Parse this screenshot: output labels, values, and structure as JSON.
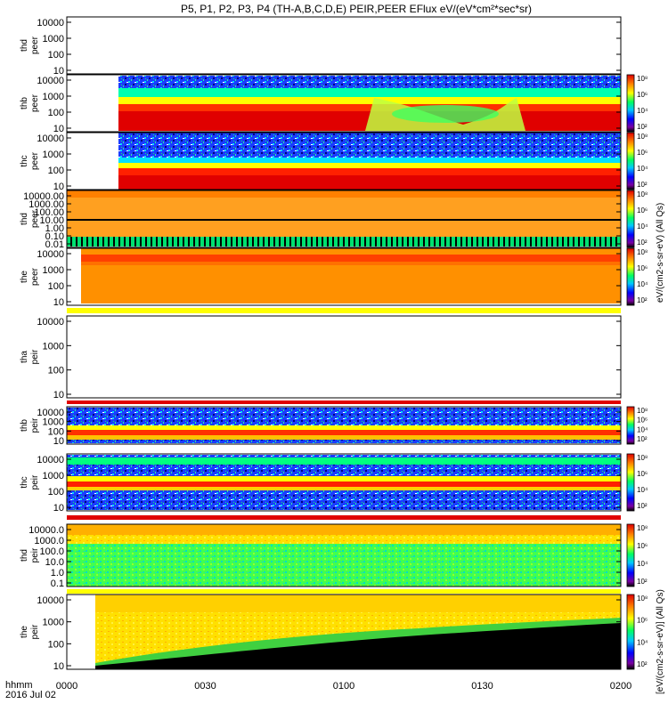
{
  "chart_data": {
    "type": "heatmap",
    "title": "P5, P1, P2, P3, P4 (TH-A,B,C,D,E) PEIR,PEER EFlux eV/(eV*cm²*sec*sr)",
    "xlabel": [
      "hhmm",
      "2016 Jul 02"
    ],
    "x_ticks": [
      "0000",
      "0030",
      "0100",
      "0130",
      "0200"
    ],
    "x_range": [
      "00:00",
      "02:00"
    ],
    "colorbar_label_electrons": "eV/(cm2-s-sr-eV) (All Qs)",
    "colorbar_label_ions": "[eV/(cm2-s-sr-eV)] (All Qs)",
    "colorbar_ticks": [
      "10²",
      "10⁴",
      "10⁶",
      "10⁸"
    ],
    "panels": [
      {
        "probe": "thd",
        "species": "peer",
        "ylabel": [
          "thd",
          "peer"
        ],
        "yticks": [
          "10000",
          "1000",
          "100",
          "10"
        ],
        "empty": true
      },
      {
        "probe": "thb",
        "species": "peer",
        "ylabel": [
          "thb",
          "peer"
        ],
        "yticks": [
          "10000",
          "1000",
          "100",
          "10"
        ],
        "empty": false
      },
      {
        "probe": "thc",
        "species": "peer",
        "ylabel": [
          "thc",
          "peer"
        ],
        "yticks": [
          "10000",
          "1000",
          "100",
          "10"
        ],
        "empty": false
      },
      {
        "probe": "thd",
        "species": "peer",
        "ylabel": [
          "thd",
          "peer"
        ],
        "yticks": [
          "10000.00",
          "1000.00",
          "100.00",
          "10.00",
          "1.00",
          "0.10",
          "0.01"
        ],
        "empty": false
      },
      {
        "probe": "the",
        "species": "peer",
        "ylabel": [
          "the",
          "peer"
        ],
        "yticks": [
          "10000",
          "1000",
          "100",
          "10"
        ],
        "empty": false
      },
      {
        "probe": "tha",
        "species": "peir",
        "ylabel": [
          "tha",
          "peir"
        ],
        "yticks": [
          "10000",
          "1000",
          "100",
          "10"
        ],
        "empty": true
      },
      {
        "probe": "thb",
        "species": "peir",
        "ylabel": [
          "thb",
          "peir"
        ],
        "yticks": [
          "10000",
          "1000",
          "100",
          "10"
        ],
        "empty": false
      },
      {
        "probe": "thc",
        "species": "peir",
        "ylabel": [
          "thc",
          "peir"
        ],
        "yticks": [
          "10000",
          "1000",
          "100",
          "10"
        ],
        "empty": false
      },
      {
        "probe": "thd",
        "species": "peir",
        "ylabel": [
          "thd",
          "peir"
        ],
        "yticks": [
          "10000.0",
          "1000.0",
          "100.0",
          "10.0",
          "1.0",
          "0.1"
        ],
        "empty": false
      },
      {
        "probe": "the",
        "species": "peir",
        "ylabel": [
          "the",
          "peir"
        ],
        "yticks": [
          "10000",
          "1000",
          "100",
          "10"
        ],
        "empty": false
      }
    ]
  }
}
